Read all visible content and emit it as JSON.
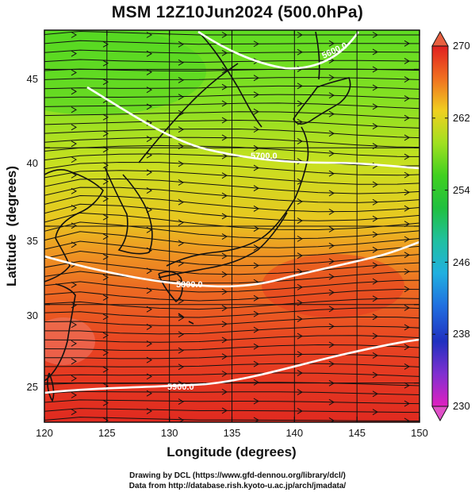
{
  "title": "MSM 12Z10Jun2024 (500.0hPa)",
  "axes": {
    "xlabel": "Longitude (degrees)",
    "ylabel": "Latitude  (degrees)",
    "x_range": [
      120,
      150
    ],
    "y_range": [
      22.5,
      47.5
    ],
    "x_ticks": [
      "120",
      "125",
      "130",
      "135",
      "140",
      "145",
      "150"
    ],
    "y_ticks": [
      "25",
      "30",
      "35",
      "40",
      "45"
    ]
  },
  "colorbar": {
    "min": 230,
    "max": 270,
    "ticks": [
      "270",
      "262",
      "254",
      "246",
      "238",
      "230"
    ],
    "colors": [
      "#e020c0",
      "#8030d0",
      "#2030c0",
      "#2080e0",
      "#20c0e0",
      "#20c080",
      "#20c020",
      "#60d020",
      "#c0e020",
      "#f0c020",
      "#f06020",
      "#e02020"
    ]
  },
  "contours": {
    "labels": [
      "5900.0",
      "5800.0",
      "5700.0",
      "5600.0"
    ]
  },
  "credit": {
    "line1": "Drawing by DCL (https://www.gfd-dennou.org/library/dcl/)",
    "line2": "Data from http://database.rish.kyoto-u.ac.jp/arch/jmadata/"
  }
}
